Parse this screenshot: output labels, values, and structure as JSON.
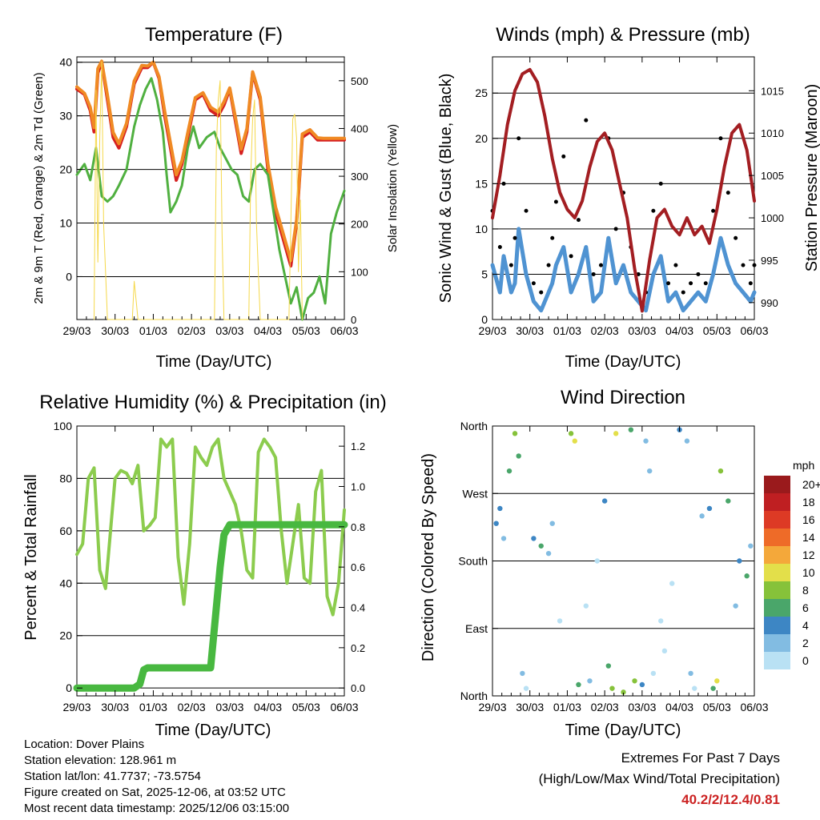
{
  "station_info": {
    "location": "Location: Dover Plains",
    "elevation": "Station elevation: 128.961 m",
    "latlon": "Station lat/lon: 41.7737; -73.5754",
    "created": "Figure created on Sat, 2025-12-06, at 03:52 UTC",
    "latest": "Most recent data timestamp: 2025/12/06 03:15:00"
  },
  "extremes": {
    "title": "Extremes For Past 7 Days",
    "subtitle": "(High/Low/Max Wind/Total Precipitation)",
    "values": "40.2/2/12.4/0.81",
    "color": "#cc2222"
  },
  "chart_data": [
    {
      "type": "line",
      "title": "Temperature (F)",
      "xlabel": "Time (Day/UTC)",
      "ylabel": "2m & 9m T (Red, Orange) & 2m Td (Green)",
      "y2label": "Solar Insolation (Yellow)",
      "categories": [
        "29/03",
        "30/03",
        "01/03",
        "02/03",
        "03/03",
        "04/03",
        "05/03",
        "06/03"
      ],
      "xlim": [
        0,
        7
      ],
      "ylim": [
        -8,
        41
      ],
      "y2lim": [
        0,
        550
      ],
      "yticks": [
        0,
        10,
        20,
        30,
        40
      ],
      "y2ticks": [
        0,
        100,
        200,
        300,
        400,
        500
      ],
      "series": [
        {
          "name": "2m T",
          "color": "#d62020",
          "x": [
            0,
            0.2,
            0.35,
            0.45,
            0.55,
            0.65,
            0.8,
            0.95,
            1.1,
            1.3,
            1.5,
            1.7,
            1.85,
            2.0,
            2.15,
            2.3,
            2.45,
            2.6,
            2.75,
            2.9,
            3.1,
            3.3,
            3.5,
            3.7,
            3.85,
            4.0,
            4.15,
            4.3,
            4.45,
            4.6,
            4.8,
            5.0,
            5.2,
            5.4,
            5.6,
            5.75,
            5.9,
            6.1,
            6.3,
            6.45,
            6.6,
            6.8,
            7.0
          ],
          "values": [
            35,
            34,
            31,
            27,
            38,
            40,
            33,
            26,
            24,
            28,
            36,
            39,
            39,
            40,
            37,
            30,
            24,
            18,
            21,
            26,
            33,
            34,
            31,
            30,
            32,
            35,
            29,
            23,
            27,
            38,
            33,
            20,
            12,
            7,
            2,
            10,
            26,
            27,
            25.5,
            25.5,
            25.5,
            25.5,
            25.5
          ]
        },
        {
          "name": "9m T",
          "color": "#f08a24",
          "x": [
            0,
            0.2,
            0.35,
            0.45,
            0.55,
            0.65,
            0.8,
            0.95,
            1.1,
            1.3,
            1.5,
            1.7,
            1.85,
            2.0,
            2.15,
            2.3,
            2.45,
            2.6,
            2.75,
            2.9,
            3.1,
            3.3,
            3.5,
            3.7,
            3.85,
            4.0,
            4.15,
            4.3,
            4.45,
            4.6,
            4.8,
            5.0,
            5.2,
            5.4,
            5.6,
            5.75,
            5.9,
            6.1,
            6.3,
            6.45,
            6.6,
            6.8,
            7.0
          ],
          "values": [
            35.4,
            34.2,
            31.6,
            27.8,
            38.8,
            40.2,
            33.8,
            26.9,
            24.8,
            28.6,
            36.5,
            39.4,
            39.3,
            40,
            37.3,
            30.8,
            24.9,
            19,
            21.6,
            26.8,
            33.4,
            34.3,
            31.6,
            30.7,
            32.6,
            35.2,
            29.7,
            23.8,
            27.6,
            38.2,
            33.5,
            21,
            13,
            8,
            3,
            10.6,
            26.6,
            27.4,
            25.9,
            25.8,
            25.8,
            25.8,
            25.8
          ]
        },
        {
          "name": "2m Td",
          "color": "#50b040",
          "x": [
            0,
            0.2,
            0.35,
            0.5,
            0.65,
            0.8,
            0.95,
            1.1,
            1.3,
            1.5,
            1.65,
            1.8,
            1.95,
            2.1,
            2.25,
            2.35,
            2.45,
            2.6,
            2.75,
            2.9,
            3.05,
            3.2,
            3.4,
            3.6,
            3.75,
            3.9,
            4.05,
            4.2,
            4.35,
            4.5,
            4.65,
            4.8,
            5.0,
            5.15,
            5.3,
            5.45,
            5.6,
            5.75,
            5.9,
            6.05,
            6.2,
            6.35,
            6.5,
            6.65,
            6.8,
            7.0
          ],
          "values": [
            19,
            21,
            18,
            24,
            15,
            14,
            15,
            17,
            20,
            28,
            32,
            35,
            37,
            33,
            27,
            19,
            12,
            14,
            17,
            24,
            28,
            24,
            26,
            27,
            24,
            22,
            20,
            19,
            15,
            14,
            20,
            21,
            19,
            12,
            5,
            0,
            -5,
            -2,
            -8,
            -4,
            -3,
            0,
            -5,
            8,
            12,
            16
          ]
        },
        {
          "name": "Solar Insolation",
          "color": "#f5d84a",
          "axis": "y2",
          "x": [
            0.45,
            0.5,
            0.55,
            0.6,
            0.65,
            0.7,
            0.8,
            1.45,
            1.5,
            1.55,
            1.6,
            1.7,
            3.6,
            3.65,
            3.7,
            3.75,
            3.8,
            3.85,
            4.5,
            4.55,
            4.6,
            4.65,
            4.7,
            4.75,
            4.8,
            5.55,
            5.6,
            5.65,
            5.7,
            5.75,
            5.8,
            5.85,
            5.9
          ],
          "values": [
            0,
            480,
            120,
            380,
            540,
            200,
            0,
            0,
            80,
            40,
            0,
            0,
            0,
            360,
            460,
            500,
            180,
            0,
            0,
            300,
            420,
            460,
            200,
            100,
            0,
            0,
            200,
            420,
            430,
            380,
            100,
            250,
            0
          ]
        }
      ]
    },
    {
      "type": "scatter",
      "title": "Winds (mph) & Pressure (mb)",
      "xlabel": "Time (Day/UTC)",
      "ylabel": "Sonic Wind & Gust (Blue, Black)",
      "y2label": "Station Pressure (Maroon)",
      "categories": [
        "29/03",
        "30/03",
        "01/03",
        "02/03",
        "03/03",
        "04/03",
        "05/03",
        "06/03"
      ],
      "xlim": [
        0,
        7
      ],
      "ylim": [
        0,
        29
      ],
      "y2lim": [
        988,
        1019
      ],
      "yticks": [
        0,
        5,
        10,
        15,
        20,
        25
      ],
      "y2ticks": [
        990,
        995,
        1000,
        1005,
        1010,
        1015
      ],
      "series": [
        {
          "name": "Sonic Wind",
          "color": "#4f93d2",
          "x": [
            0,
            0.2,
            0.3,
            0.5,
            0.6,
            0.7,
            0.9,
            1.1,
            1.3,
            1.5,
            1.6,
            1.7,
            1.9,
            2.1,
            2.3,
            2.5,
            2.7,
            2.9,
            3.1,
            3.3,
            3.5,
            3.7,
            3.9,
            4.1,
            4.3,
            4.5,
            4.7,
            4.9,
            5.1,
            5.3,
            5.5,
            5.7,
            5.9,
            6.1,
            6.3,
            6.5,
            6.7,
            6.9,
            7.0
          ],
          "values": [
            6,
            3,
            7,
            3,
            4,
            10,
            5,
            2,
            1,
            3,
            4,
            6,
            8,
            3,
            5,
            8,
            2,
            3,
            9,
            4,
            6,
            3,
            2,
            1,
            5,
            7,
            2,
            3,
            1,
            2,
            3,
            2,
            5,
            9,
            6,
            4,
            3,
            2,
            3
          ]
        },
        {
          "name": "Gust",
          "color": "#000000",
          "x": [
            0,
            0.2,
            0.3,
            0.5,
            0.6,
            0.7,
            0.9,
            1.1,
            1.3,
            1.5,
            1.6,
            1.7,
            1.9,
            2.1,
            2.3,
            2.5,
            2.7,
            2.9,
            3.1,
            3.3,
            3.5,
            3.7,
            3.9,
            4.1,
            4.3,
            4.5,
            4.7,
            4.9,
            5.1,
            5.3,
            5.5,
            5.7,
            5.9,
            6.1,
            6.3,
            6.5,
            6.7,
            6.9,
            7.0
          ],
          "values": [
            12,
            8,
            15,
            6,
            9,
            20,
            12,
            4,
            3,
            6,
            9,
            13,
            18,
            7,
            11,
            22,
            5,
            6,
            20,
            10,
            14,
            8,
            5,
            3,
            12,
            15,
            4,
            6,
            3,
            4,
            5,
            4,
            12,
            20,
            14,
            9,
            6,
            4,
            6
          ]
        },
        {
          "name": "Station Pressure",
          "color": "#a31e22",
          "axis": "y2",
          "x": [
            0,
            0.2,
            0.4,
            0.6,
            0.8,
            1.0,
            1.2,
            1.4,
            1.6,
            1.8,
            2.0,
            2.2,
            2.4,
            2.6,
            2.8,
            3.0,
            3.2,
            3.4,
            3.6,
            3.8,
            4.0,
            4.2,
            4.4,
            4.6,
            4.8,
            5.0,
            5.2,
            5.4,
            5.6,
            5.8,
            6.0,
            6.2,
            6.4,
            6.6,
            6.8,
            7.0
          ],
          "values": [
            1000,
            1005,
            1011,
            1015,
            1017,
            1017.5,
            1016,
            1012,
            1007,
            1003,
            1001,
            1000,
            1002,
            1006,
            1009,
            1010,
            1008,
            1004,
            1000,
            994,
            989,
            995,
            1000,
            1001,
            999,
            998,
            1000,
            998,
            999,
            997,
            1001,
            1006,
            1010,
            1011,
            1008,
            1002
          ]
        }
      ]
    },
    {
      "type": "line",
      "title": "Relative Humidity (%) & Precipitation (in)",
      "xlabel": "Time (Day/UTC)",
      "ylabel": "Percent & Total Rainfall",
      "categories": [
        "29/03",
        "30/03",
        "01/03",
        "02/03",
        "03/03",
        "04/03",
        "05/03",
        "06/03"
      ],
      "xlim": [
        0,
        7
      ],
      "ylim": [
        -3,
        100
      ],
      "y2lim": [
        -0.039,
        1.3
      ],
      "yticks": [
        0,
        20,
        40,
        60,
        80,
        100
      ],
      "y2ticks": [
        0.0,
        0.2,
        0.4,
        0.6,
        0.8,
        1.0,
        1.2
      ],
      "series": [
        {
          "name": "Relative Humidity",
          "color": "#8ccc4e",
          "x": [
            0,
            0.15,
            0.3,
            0.45,
            0.6,
            0.75,
            0.85,
            1.0,
            1.15,
            1.3,
            1.45,
            1.6,
            1.75,
            1.9,
            2.05,
            2.2,
            2.35,
            2.5,
            2.65,
            2.8,
            2.95,
            3.1,
            3.25,
            3.4,
            3.55,
            3.7,
            3.85,
            4.0,
            4.15,
            4.3,
            4.45,
            4.6,
            4.75,
            4.9,
            5.05,
            5.2,
            5.35,
            5.5,
            5.65,
            5.8,
            5.95,
            6.1,
            6.25,
            6.4,
            6.55,
            6.7,
            6.85,
            7.0
          ],
          "values": [
            51,
            55,
            80,
            84,
            45,
            38,
            55,
            80,
            83,
            82,
            78,
            85,
            60,
            62,
            65,
            95,
            92,
            95,
            50,
            32,
            55,
            92,
            88,
            85,
            92,
            95,
            80,
            75,
            70,
            60,
            45,
            42,
            90,
            95,
            92,
            88,
            60,
            40,
            55,
            70,
            42,
            40,
            75,
            83,
            35,
            28,
            40,
            68
          ]
        },
        {
          "name": "Total Precipitation",
          "color": "#48b840",
          "axis": "y2",
          "x": [
            0,
            0.5,
            1.0,
            1.5,
            1.65,
            1.75,
            1.85,
            2.0,
            2.5,
            3.0,
            3.5,
            3.6,
            3.75,
            3.85,
            4.0,
            4.1,
            4.3,
            4.5,
            5.0,
            5.5,
            6.0,
            6.5,
            7.0
          ],
          "values": [
            0,
            0,
            0,
            0,
            0.02,
            0.09,
            0.1,
            0.1,
            0.1,
            0.1,
            0.1,
            0.3,
            0.6,
            0.76,
            0.81,
            0.81,
            0.81,
            0.81,
            0.81,
            0.81,
            0.81,
            0.81,
            0.81
          ]
        }
      ]
    },
    {
      "type": "scatter",
      "title": "Wind Direction",
      "xlabel": "Time (Day/UTC)",
      "ylabel": "Direction (Colored By Speed)",
      "categories": [
        "29/03",
        "30/03",
        "01/03",
        "02/03",
        "03/03",
        "04/03",
        "05/03",
        "06/03"
      ],
      "xlim": [
        0,
        7
      ],
      "ylim": [
        0,
        360
      ],
      "ytick_labels": [
        "North",
        "East",
        "South",
        "West",
        "North"
      ],
      "yticks": [
        0,
        90,
        180,
        270,
        360
      ],
      "legend_title": "mph",
      "legend_labels": [
        "0",
        "2",
        "4",
        "6",
        "8",
        "10",
        "12",
        "14",
        "16",
        "18",
        "20+"
      ],
      "legend_colors": [
        "#b9e1f4",
        "#82bce2",
        "#3d86c4",
        "#4aa66a",
        "#86c23a",
        "#e3df4a",
        "#f4a83a",
        "#ee6b28",
        "#dd3a25",
        "#bf1f22",
        "#9a1a1c"
      ],
      "series": [
        {
          "name": "Direction",
          "x": [
            0.1,
            0.2,
            0.3,
            0.45,
            0.6,
            0.7,
            0.8,
            0.9,
            1.1,
            1.3,
            1.5,
            1.6,
            1.8,
            2.1,
            2.2,
            2.3,
            2.5,
            2.6,
            2.8,
            3.0,
            3.1,
            3.2,
            3.3,
            3.5,
            3.7,
            3.8,
            4.0,
            4.1,
            4.2,
            4.3,
            4.5,
            4.6,
            4.8,
            5.0,
            5.2,
            5.3,
            5.4,
            5.6,
            5.8,
            5.9,
            6.0,
            6.1,
            6.3,
            6.5,
            6.6,
            6.8,
            6.9
          ],
          "values": [
            230,
            250,
            210,
            300,
            350,
            320,
            30,
            10,
            210,
            200,
            190,
            230,
            100,
            350,
            340,
            15,
            120,
            20,
            180,
            260,
            40,
            10,
            350,
            5,
            355,
            20,
            15,
            340,
            300,
            30,
            100,
            60,
            150,
            355,
            340,
            30,
            10,
            240,
            250,
            10,
            20,
            300,
            260,
            120,
            180,
            160,
            200
          ],
          "speeds": [
            4,
            4,
            2,
            6,
            8,
            6,
            2,
            1,
            4,
            6,
            2,
            3,
            1,
            8,
            10,
            6,
            1,
            2,
            1,
            4,
            6,
            8,
            10,
            8,
            6,
            8,
            4,
            2,
            2,
            1,
            1,
            1,
            1,
            4,
            2,
            2,
            1,
            2,
            4,
            6,
            10,
            8,
            6,
            2,
            4,
            6,
            2
          ]
        }
      ]
    }
  ]
}
